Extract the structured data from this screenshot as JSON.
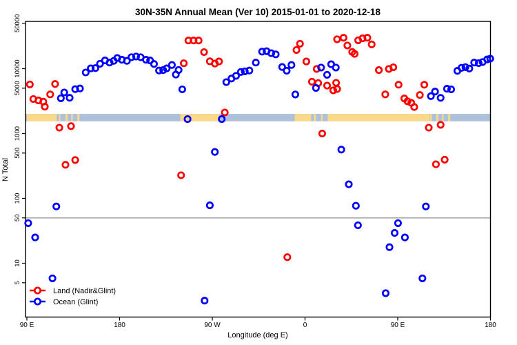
{
  "chart_data": {
    "type": "scatter",
    "title": "30N-35N Annual Mean (Ver 10)   2015-01-01 to 2020-12-18",
    "xlabel": "Longitude (deg E)",
    "ylabel": "N Total",
    "x_axis": {
      "note": "longitude axis wraps eastward, displayed degrees east 90..540",
      "range": [
        90,
        540
      ],
      "ticks": [
        {
          "lon": 90,
          "label": "90 E"
        },
        {
          "lon": 180,
          "label": "180"
        },
        {
          "lon": 270,
          "label": "90 W"
        },
        {
          "lon": 360,
          "label": "0"
        },
        {
          "lon": 450,
          "label": "90 E"
        },
        {
          "lon": 540,
          "label": "180"
        }
      ]
    },
    "y_axis": {
      "scale": "log",
      "range": [
        1.5,
        55000
      ],
      "ticks": [
        {
          "value": 50000,
          "label": "50000"
        },
        {
          "value": 10000,
          "label": "10000"
        },
        {
          "value": 5000,
          "label": "5000"
        },
        {
          "value": 1000,
          "label": "1000"
        },
        {
          "value": 500,
          "label": "500"
        },
        {
          "value": 100,
          "label": "100"
        },
        {
          "value": 50,
          "label": "50"
        },
        {
          "value": 10,
          "label": "10"
        },
        {
          "value": 5,
          "label": "5"
        }
      ]
    },
    "reference_line": {
      "value": 50,
      "color": "#9B9B9B"
    },
    "map_strip": {
      "description": "land/ocean map band at 30N-35N drawn across plot",
      "values_range": [
        1540,
        2010
      ],
      "ocean_color": "#AEC1DB",
      "land_color": "#FBD98B",
      "land_segments": [
        [
          90,
          119
        ],
        [
          121,
          122.5
        ],
        [
          127.5,
          129.5
        ],
        [
          133,
          134.5
        ],
        [
          139,
          141
        ],
        [
          239,
          277
        ],
        [
          350,
          366
        ],
        [
          368.5,
          370.5
        ],
        [
          375.5,
          377
        ],
        [
          382,
          481
        ],
        [
          481.5,
          483
        ],
        [
          487.5,
          489.5
        ],
        [
          493,
          494.5
        ],
        [
          499,
          501
        ]
      ]
    },
    "series": [
      {
        "name": "Land (Nadir&Glint)",
        "color": "#FF0000",
        "marker": "open-circle",
        "points": [
          [
            92.9,
            5700
          ],
          [
            96.2,
            3400
          ],
          [
            101.2,
            3230
          ],
          [
            105.9,
            3100
          ],
          [
            107.4,
            2590
          ],
          [
            112.6,
            4010
          ],
          [
            117.4,
            5800
          ],
          [
            121.5,
            1230
          ],
          [
            127.5,
            330
          ],
          [
            132.8,
            1300
          ],
          [
            136.9,
            390
          ],
          [
            239.7,
            227
          ],
          [
            242.3,
            12100
          ],
          [
            246.8,
            27200
          ],
          [
            251.8,
            27200
          ],
          [
            256.7,
            27200
          ],
          [
            262.0,
            18000
          ],
          [
            267.6,
            13000
          ],
          [
            272.5,
            12000
          ],
          [
            276.5,
            12900
          ],
          [
            282.1,
            2110
          ],
          [
            342.8,
            12.4
          ],
          [
            351.7,
            19400
          ],
          [
            355.1,
            24200
          ],
          [
            361.3,
            12900
          ],
          [
            366.7,
            6300
          ],
          [
            371.3,
            9900
          ],
          [
            372.8,
            6000
          ],
          [
            376.7,
            1000
          ],
          [
            381.4,
            5470
          ],
          [
            387.4,
            4630
          ],
          [
            390.2,
            6050
          ],
          [
            391.2,
            4860
          ],
          [
            391.1,
            28400
          ],
          [
            397.4,
            30000
          ],
          [
            401.1,
            22800
          ],
          [
            405.8,
            18100
          ],
          [
            408.2,
            16900
          ],
          [
            411.6,
            27400
          ],
          [
            415.8,
            29300
          ],
          [
            420.5,
            30000
          ],
          [
            424.7,
            23700
          ],
          [
            431.7,
            9500
          ],
          [
            437.9,
            4010
          ],
          [
            441.4,
            9900
          ],
          [
            445.7,
            10500
          ],
          [
            450.8,
            5650
          ],
          [
            456.4,
            3470
          ],
          [
            459.5,
            3140
          ],
          [
            463.1,
            2970
          ],
          [
            466.0,
            2560
          ],
          [
            471.5,
            3920
          ],
          [
            475.8,
            5650
          ],
          [
            480.1,
            1230
          ],
          [
            487.1,
            335
          ],
          [
            491.6,
            1360
          ],
          [
            495.6,
            395
          ]
        ]
      },
      {
        "name": "Ocean (Glint)",
        "color": "#0000FF",
        "marker": "open-circle",
        "points": [
          [
            91.3,
            41.5
          ],
          [
            98.0,
            25
          ],
          [
            114.8,
            5.85
          ],
          [
            118.6,
            75
          ],
          [
            123.0,
            3500
          ],
          [
            126.3,
            4300
          ],
          [
            131.5,
            3560
          ],
          [
            136.9,
            4830
          ],
          [
            141.5,
            4950
          ],
          [
            147.1,
            8750
          ],
          [
            152.0,
            10100
          ],
          [
            156.5,
            10200
          ],
          [
            161.0,
            11900
          ],
          [
            165.8,
            13400
          ],
          [
            170.3,
            12400
          ],
          [
            174.3,
            13200
          ],
          [
            177.7,
            14600
          ],
          [
            182.2,
            13700
          ],
          [
            187.1,
            13200
          ],
          [
            191.5,
            15000
          ],
          [
            196.0,
            15400
          ],
          [
            200.4,
            15000
          ],
          [
            205.6,
            13700
          ],
          [
            209.6,
            13400
          ],
          [
            213.4,
            11800
          ],
          [
            218.3,
            9350
          ],
          [
            222.3,
            9500
          ],
          [
            225.7,
            10100
          ],
          [
            230.8,
            11400
          ],
          [
            234.6,
            8100
          ],
          [
            237.3,
            9550
          ],
          [
            240.8,
            4800
          ],
          [
            246.0,
            1670
          ],
          [
            262.5,
            2.65
          ],
          [
            267.6,
            78
          ],
          [
            272.5,
            520
          ],
          [
            279.2,
            1670
          ],
          [
            283.6,
            6200
          ],
          [
            288.6,
            7050
          ],
          [
            293.0,
            7750
          ],
          [
            297.7,
            8900
          ],
          [
            301.5,
            9100
          ],
          [
            306.0,
            9350
          ],
          [
            312.2,
            12400
          ],
          [
            318.3,
            18300
          ],
          [
            322.7,
            18600
          ],
          [
            327.2,
            17300
          ],
          [
            331.6,
            16600
          ],
          [
            337.8,
            10600
          ],
          [
            342.2,
            9300
          ],
          [
            346.8,
            11400
          ],
          [
            350.6,
            4000
          ],
          [
            370.6,
            5050
          ],
          [
            375.6,
            10400
          ],
          [
            381.4,
            8050
          ],
          [
            385.4,
            11700
          ],
          [
            389.9,
            10400
          ],
          [
            395.2,
            565
          ],
          [
            402.5,
            165
          ],
          [
            409.4,
            77
          ],
          [
            411.4,
            38.5
          ],
          [
            438.3,
            3.45
          ],
          [
            442.0,
            17.7
          ],
          [
            447.0,
            29.3
          ],
          [
            450.3,
            41.5
          ],
          [
            457.0,
            25
          ],
          [
            474.0,
            5.85
          ],
          [
            477.3,
            75
          ],
          [
            482.2,
            3770
          ],
          [
            486.2,
            4430
          ],
          [
            491.6,
            3550
          ],
          [
            497.8,
            4900
          ],
          [
            501.9,
            4790
          ],
          [
            507.9,
            9250
          ],
          [
            511.9,
            10300
          ],
          [
            515.7,
            10550
          ],
          [
            519.5,
            10050
          ],
          [
            524.2,
            12400
          ],
          [
            528.6,
            12150
          ],
          [
            532.4,
            12650
          ],
          [
            536.9,
            13900
          ],
          [
            539.8,
            14250
          ]
        ]
      }
    ]
  },
  "legend": {
    "position": "bottom-left",
    "items": [
      {
        "label": "Land (Nadir&Glint)",
        "color": "#FF0000"
      },
      {
        "label": "Ocean (Glint)",
        "color": "#0000FF"
      }
    ]
  }
}
